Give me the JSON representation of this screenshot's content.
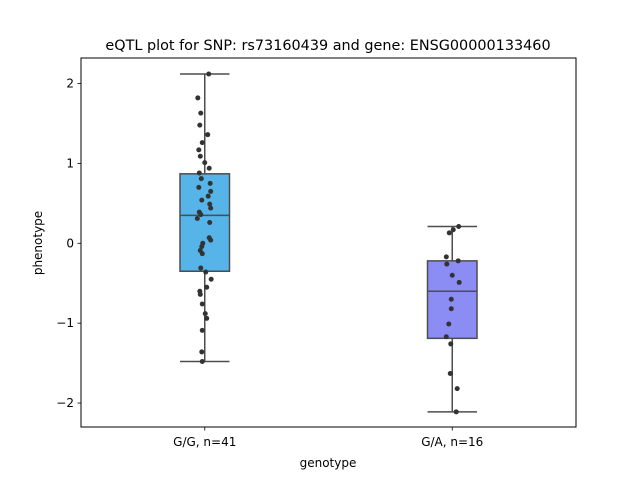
{
  "chart_data": {
    "type": "box",
    "title": "eQTL plot for SNP: rs73160439 and gene: ENSG00000133460",
    "xlabel": "genotype",
    "ylabel": "phenotype",
    "ylim": [
      -2.3,
      2.32
    ],
    "yticks": [
      -2,
      -1,
      0,
      1,
      2
    ],
    "ytick_labels": [
      "−2",
      "−1",
      "0",
      "1",
      "2"
    ],
    "grid": false,
    "categories": [
      "G/G, n=41",
      "G/A, n=16"
    ],
    "boxes": [
      {
        "category": "G/G, n=41",
        "color": "#56b4e9",
        "q1": -0.35,
        "median": 0.35,
        "q3": 0.87,
        "whisker_low": -1.48,
        "whisker_high": 2.12,
        "points": [
          {
            "x": 0.16,
            "y": 2.12
          },
          {
            "x": -0.28,
            "y": 1.82
          },
          {
            "x": -0.16,
            "y": 1.63
          },
          {
            "x": -0.2,
            "y": 1.48
          },
          {
            "x": 0.12,
            "y": 1.36
          },
          {
            "x": -0.1,
            "y": 1.26
          },
          {
            "x": -0.24,
            "y": 1.17
          },
          {
            "x": -0.18,
            "y": 1.09
          },
          {
            "x": 0.0,
            "y": 1.01
          },
          {
            "x": 0.18,
            "y": 0.94
          },
          {
            "x": -0.22,
            "y": 0.88
          },
          {
            "x": -0.14,
            "y": 0.81
          },
          {
            "x": 0.22,
            "y": 0.75
          },
          {
            "x": -0.24,
            "y": 0.7
          },
          {
            "x": 0.24,
            "y": 0.65
          },
          {
            "x": 0.14,
            "y": 0.59
          },
          {
            "x": -0.12,
            "y": 0.54
          },
          {
            "x": 0.2,
            "y": 0.49
          },
          {
            "x": 0.24,
            "y": 0.44
          },
          {
            "x": -0.22,
            "y": 0.39
          },
          {
            "x": -0.16,
            "y": 0.36
          },
          {
            "x": -0.3,
            "y": 0.31
          },
          {
            "x": 0.2,
            "y": 0.26
          },
          {
            "x": 0.18,
            "y": 0.07
          },
          {
            "x": 0.24,
            "y": 0.04
          },
          {
            "x": -0.08,
            "y": 0.0
          },
          {
            "x": -0.12,
            "y": -0.04
          },
          {
            "x": -0.18,
            "y": -0.09
          },
          {
            "x": -0.1,
            "y": -0.13
          },
          {
            "x": -0.16,
            "y": -0.31
          },
          {
            "x": 0.04,
            "y": -0.36
          },
          {
            "x": 0.26,
            "y": -0.45
          },
          {
            "x": 0.08,
            "y": -0.55
          },
          {
            "x": -0.2,
            "y": -0.6
          },
          {
            "x": -0.18,
            "y": -0.64
          },
          {
            "x": -0.1,
            "y": -0.76
          },
          {
            "x": 0.02,
            "y": -0.88
          },
          {
            "x": 0.08,
            "y": -0.94
          },
          {
            "x": -0.1,
            "y": -1.09
          },
          {
            "x": -0.12,
            "y": -1.36
          },
          {
            "x": -0.1,
            "y": -1.48
          }
        ]
      },
      {
        "category": "G/A, n=16",
        "color": "#8c8cf5",
        "q1": -1.19,
        "median": -0.6,
        "q3": -0.22,
        "whisker_low": -2.11,
        "whisker_high": 0.21,
        "points": [
          {
            "x": 0.26,
            "y": 0.21
          },
          {
            "x": 0.04,
            "y": 0.17
          },
          {
            "x": -0.12,
            "y": 0.13
          },
          {
            "x": -0.24,
            "y": -0.17
          },
          {
            "x": 0.24,
            "y": -0.22
          },
          {
            "x": -0.22,
            "y": -0.26
          },
          {
            "x": 0.0,
            "y": -0.4
          },
          {
            "x": 0.28,
            "y": -0.49
          },
          {
            "x": -0.04,
            "y": -0.7
          },
          {
            "x": -0.04,
            "y": -0.82
          },
          {
            "x": -0.14,
            "y": -1.01
          },
          {
            "x": -0.24,
            "y": -1.17
          },
          {
            "x": -0.06,
            "y": -1.26
          },
          {
            "x": -0.08,
            "y": -1.63
          },
          {
            "x": 0.2,
            "y": -1.82
          },
          {
            "x": 0.16,
            "y": -2.11
          }
        ]
      }
    ]
  }
}
